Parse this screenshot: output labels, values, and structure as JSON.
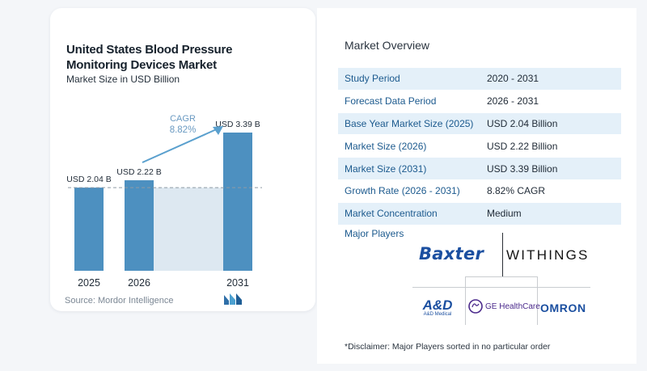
{
  "chart_data": {
    "type": "bar",
    "title": "United States Blood Pressure Monitoring Devices Market",
    "subtitle": "Market Size in USD Billion",
    "categories": [
      "2025",
      "2026",
      "2031"
    ],
    "values": [
      2.04,
      2.22,
      3.39
    ],
    "data_labels": [
      "USD 2.04 B",
      "USD 2.22 B",
      "USD 3.39 B"
    ],
    "cagr_label": "CAGR",
    "cagr_value": "8.82%",
    "ylim": [
      0,
      3.6
    ],
    "grid": false,
    "colors": {
      "bar": "#4d90c0",
      "shade": "#dde8f1",
      "dashed": "#8f9aa5",
      "arrow": "#5aa0ce",
      "cagr": "#6a9ac2"
    }
  },
  "source": "Source: Mordor Intelligence",
  "overview": {
    "title": "Market Overview",
    "rows": [
      {
        "label": "Study Period",
        "value": "2020 - 2031"
      },
      {
        "label": "Forecast Data Period",
        "value": "2026 - 2031"
      },
      {
        "label": "Base Year Market Size (2025)",
        "value": "USD 2.04 Billion"
      },
      {
        "label": "Market Size (2026)",
        "value": "USD 2.22 Billion"
      },
      {
        "label": "Market Size (2031)",
        "value": "USD 3.39 Billion"
      },
      {
        "label": "Growth Rate (2026 - 2031)",
        "value": "8.82% CAGR"
      },
      {
        "label": "Market Concentration",
        "value": "Medium"
      }
    ]
  },
  "players": {
    "title": "Major Players",
    "logos": {
      "baxter": "Baxter",
      "withings": "WITHINGS",
      "and_main": "A&D",
      "and_sub": "A&D Medical",
      "ge": "GE HealthCare",
      "omron": "OMRON"
    }
  },
  "disclaimer": "*Disclaimer: Major Players sorted in no particular order"
}
